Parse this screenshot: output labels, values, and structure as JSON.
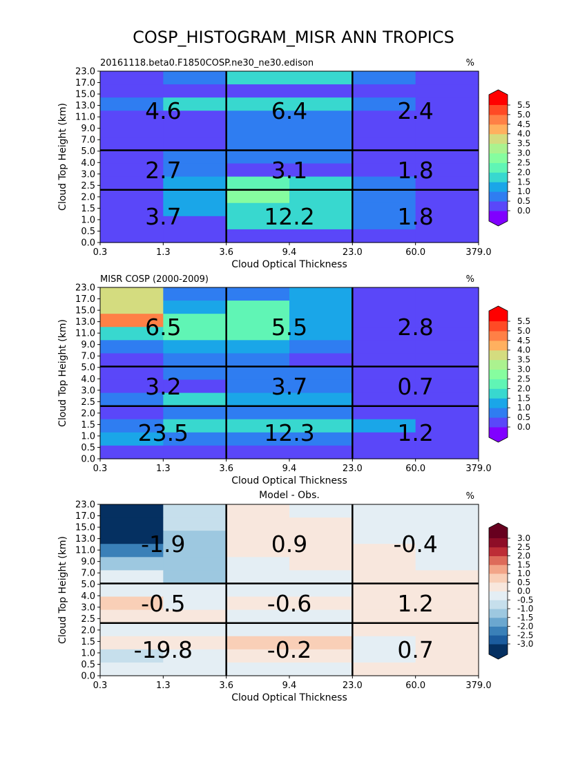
{
  "title": "COSP_HISTOGRAM_MISR ANN TROPICS",
  "chart_data": [
    {
      "type": "heatmap",
      "subtitle_left": "20161118.beta0.F1850COSP.ne30_ne30.edison",
      "subtitle_right": "%",
      "xlabel": "Cloud Optical Thickness",
      "ylabel": "Cloud Top Height (km)",
      "x_ticks": [
        "0.3",
        "1.3",
        "3.6",
        "9.4",
        "23.0",
        "60.0",
        "379.0"
      ],
      "y_ticks": [
        "0.0",
        "0.5",
        "1.0",
        "1.5",
        "2.0",
        "2.5",
        "3.0",
        "4.0",
        "5.0",
        "7.0",
        "9.0",
        "11.0",
        "13.0",
        "15.0",
        "17.0",
        "23.0"
      ],
      "grid": [
        [
          0.3,
          0.8,
          1.6,
          1.6,
          0.8,
          0.3
        ],
        [
          0.3,
          0.3,
          0.3,
          0.3,
          0.3,
          0.3
        ],
        [
          0.8,
          1.6,
          1.6,
          1.6,
          0.8,
          0.3
        ],
        [
          0.3,
          0.3,
          0.8,
          0.8,
          0.3,
          0.3
        ],
        [
          0.3,
          0.3,
          0.8,
          0.8,
          0.3,
          0.3
        ],
        [
          0.3,
          0.3,
          0.8,
          0.8,
          0.3,
          0.3
        ],
        [
          0.3,
          0.8,
          0.8,
          0.8,
          0.3,
          0.3
        ],
        [
          0.3,
          0.8,
          0.3,
          0.3,
          0.3,
          0.3
        ],
        [
          0.3,
          1.3,
          2.2,
          1.6,
          0.8,
          0.3
        ],
        [
          0.3,
          1.3,
          2.6,
          1.6,
          0.8,
          0.3
        ],
        [
          0.3,
          1.3,
          1.6,
          1.6,
          0.8,
          0.3
        ],
        [
          0.3,
          0.3,
          1.6,
          1.6,
          0.8,
          0.3
        ],
        [
          0.3,
          0.3,
          0.3,
          0.3,
          0.3,
          0.3
        ]
      ],
      "block_values": [
        [
          "4.6",
          "6.4",
          "2.4"
        ],
        [
          "2.7",
          "3.1",
          "1.8"
        ],
        [
          "3.7",
          "12.2",
          "1.8"
        ]
      ],
      "colorbar": {
        "palette": "rainbow",
        "levels": [
          0.0,
          0.5,
          1.0,
          1.5,
          2.0,
          2.5,
          3.0,
          3.5,
          4.0,
          4.5,
          5.0,
          5.5
        ],
        "labels": [
          "0.0",
          "0.5",
          "1.0",
          "1.5",
          "2.0",
          "2.5",
          "3.0",
          "3.5",
          "4.0",
          "4.5",
          "5.0",
          "5.5"
        ],
        "colors": [
          "#8000ff",
          "#5a47f9",
          "#2f7df1",
          "#1aa6e8",
          "#38d8cf",
          "#60f5b5",
          "#86fd9f",
          "#abf28f",
          "#d4dc7f",
          "#ffb05f",
          "#ff8046",
          "#ff4a25",
          "#ff0000"
        ]
      }
    },
    {
      "type": "heatmap",
      "subtitle_left": "MISR COSP (2000-2009)",
      "subtitle_right": "%",
      "xlabel": "Cloud Optical Thickness",
      "ylabel": "Cloud Top Height (km)",
      "x_ticks": [
        "0.3",
        "1.3",
        "3.6",
        "9.4",
        "23.0",
        "60.0",
        "379.0"
      ],
      "y_ticks": [
        "0.0",
        "0.5",
        "1.0",
        "1.5",
        "2.0",
        "2.5",
        "3.0",
        "4.0",
        "5.0",
        "7.0",
        "9.0",
        "11.0",
        "13.0",
        "15.0",
        "17.0",
        "23.0"
      ],
      "grid": [
        [
          3.6,
          0.8,
          0.8,
          1.3,
          0.3,
          0.3
        ],
        [
          3.6,
          1.3,
          2.2,
          1.3,
          0.3,
          0.3
        ],
        [
          4.6,
          2.2,
          2.2,
          1.3,
          0.3,
          0.3
        ],
        [
          1.6,
          2.2,
          2.2,
          1.3,
          0.3,
          0.3
        ],
        [
          0.8,
          1.3,
          1.3,
          0.8,
          0.3,
          0.3
        ],
        [
          0.3,
          0.8,
          0.8,
          0.3,
          0.3,
          0.3
        ],
        [
          0.3,
          0.8,
          0.8,
          0.8,
          0.3,
          0.3
        ],
        [
          0.3,
          0.3,
          0.8,
          0.8,
          0.3,
          0.3
        ],
        [
          0.8,
          1.6,
          1.3,
          1.3,
          0.3,
          0.3
        ],
        [
          0.3,
          0.8,
          0.8,
          0.8,
          0.3,
          0.3
        ],
        [
          0.8,
          1.6,
          1.6,
          1.6,
          1.3,
          0.3
        ],
        [
          1.3,
          0.8,
          0.8,
          0.8,
          0.3,
          0.3
        ],
        [
          0.3,
          0.3,
          0.3,
          0.3,
          0.3,
          0.3
        ]
      ],
      "block_values": [
        [
          "6.5",
          "5.5",
          "2.8"
        ],
        [
          "3.2",
          "3.7",
          "0.7"
        ],
        [
          "23.5",
          "12.3",
          "1.2"
        ]
      ],
      "colorbar": {
        "palette": "rainbow",
        "levels": [
          0.0,
          0.5,
          1.0,
          1.5,
          2.0,
          2.5,
          3.0,
          3.5,
          4.0,
          4.5,
          5.0,
          5.5
        ],
        "labels": [
          "0.0",
          "0.5",
          "1.0",
          "1.5",
          "2.0",
          "2.5",
          "3.0",
          "3.5",
          "4.0",
          "4.5",
          "5.0",
          "5.5"
        ],
        "colors": [
          "#8000ff",
          "#5a47f9",
          "#2f7df1",
          "#1aa6e8",
          "#38d8cf",
          "#60f5b5",
          "#86fd9f",
          "#abf28f",
          "#d4dc7f",
          "#ffb05f",
          "#ff8046",
          "#ff4a25",
          "#ff0000"
        ]
      }
    },
    {
      "type": "heatmap",
      "title": "Model - Obs.",
      "subtitle_left": "",
      "subtitle_right": "%",
      "xlabel": "Cloud Optical Thickness",
      "ylabel": "Cloud Top Height (km)",
      "x_ticks": [
        "0.3",
        "1.3",
        "3.6",
        "9.4",
        "23.0",
        "60.0",
        "379.0"
      ],
      "y_ticks": [
        "0.0",
        "0.5",
        "1.0",
        "1.5",
        "2.0",
        "2.5",
        "3.0",
        "4.0",
        "5.0",
        "7.0",
        "9.0",
        "11.0",
        "13.0",
        "15.0",
        "17.0",
        "23.0"
      ],
      "grid": [
        [
          -3.2,
          -0.8,
          0.3,
          -0.3,
          -0.3,
          -0.3
        ],
        [
          -3.2,
          -0.8,
          0.3,
          0.3,
          -0.3,
          -0.3
        ],
        [
          -3.2,
          -1.3,
          0.3,
          0.3,
          -0.3,
          -0.3
        ],
        [
          -2.3,
          -1.3,
          0.3,
          0.3,
          0.3,
          -0.3
        ],
        [
          -1.3,
          -1.3,
          -0.3,
          0.3,
          0.3,
          -0.3
        ],
        [
          -0.3,
          -1.3,
          -0.3,
          -0.3,
          0.3,
          0.3
        ],
        [
          -0.3,
          -0.3,
          -0.3,
          -0.3,
          0.3,
          0.3
        ],
        [
          0.8,
          -0.3,
          0.3,
          0.3,
          0.3,
          0.3
        ],
        [
          0.3,
          0.3,
          -0.3,
          -0.3,
          0.3,
          0.3
        ],
        [
          -0.3,
          -0.3,
          -0.3,
          -0.3,
          0.3,
          0.3
        ],
        [
          0.3,
          0.3,
          0.8,
          0.8,
          -0.3,
          0.3
        ],
        [
          -0.8,
          -0.3,
          0.3,
          0.3,
          -0.3,
          0.3
        ],
        [
          -0.3,
          -0.3,
          -0.3,
          -0.3,
          0.3,
          0.3
        ]
      ],
      "block_values": [
        [
          "-1.9",
          "0.9",
          "-0.4"
        ],
        [
          "-0.5",
          "-0.6",
          "1.2"
        ],
        [
          "-19.8",
          "-0.2",
          "0.7"
        ]
      ],
      "colorbar": {
        "palette": "diverging",
        "levels": [
          -3.0,
          -2.5,
          -2.0,
          -1.5,
          -1.0,
          -0.5,
          0.0,
          0.5,
          1.0,
          1.5,
          2.0,
          2.5,
          3.0
        ],
        "labels": [
          "-3.0",
          "-2.5",
          "-2.0",
          "-1.5",
          "-1.0",
          "-0.5",
          "0.0",
          "0.5",
          "1.0",
          "1.5",
          "2.0",
          "2.5",
          "3.0"
        ],
        "colors": [
          "#053061",
          "#1c5c9e",
          "#3a80b8",
          "#6ba7cf",
          "#9dc8e0",
          "#c6dfec",
          "#e4eef4",
          "#f8e7dd",
          "#f9cfb7",
          "#f2a588",
          "#dd6b5a",
          "#bd2d36",
          "#8e0d27",
          "#67001f"
        ]
      }
    }
  ]
}
